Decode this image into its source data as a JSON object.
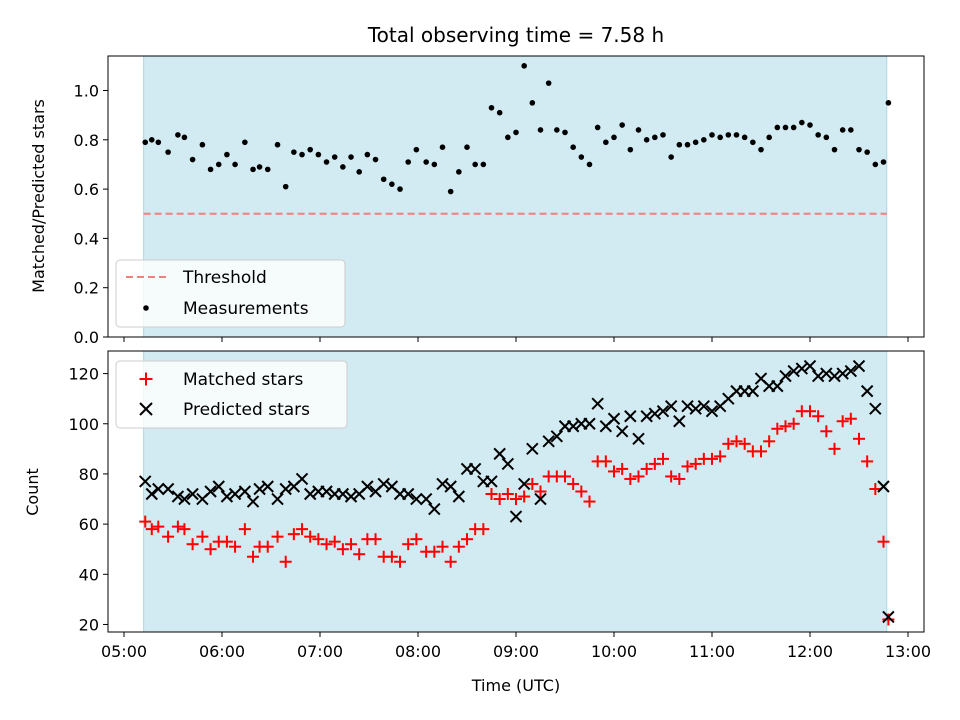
{
  "chart_data": [
    {
      "type": "scatter",
      "title": "Total observing time = 7.58 h",
      "ylabel": "Matched/Predicted stars",
      "xlabel": "",
      "ylim": [
        0,
        1.14
      ],
      "xlim": [
        "05:00",
        "13:00"
      ],
      "y_ticks": [
        0.0,
        0.2,
        0.4,
        0.6,
        0.8,
        1.0
      ],
      "y_tick_labels": [
        "0.0",
        "0.2",
        "0.4",
        "0.6",
        "0.8",
        "1.0"
      ],
      "shaded_span": {
        "start": "05:12",
        "end": "12:47",
        "color": "#add8e6"
      },
      "legend": {
        "position": "lower-left",
        "entries": [
          "Threshold",
          "Measurements"
        ]
      },
      "series": [
        {
          "name": "Threshold",
          "kind": "dashed-line",
          "color": "#f08080",
          "y": 0.5,
          "x_range": [
            "05:12",
            "12:47"
          ]
        },
        {
          "name": "Measurements",
          "kind": "points",
          "color": "#000000",
          "x": [
            "05:13",
            "05:17",
            "05:21",
            "05:27",
            "05:33",
            "05:37",
            "05:42",
            "05:48",
            "05:53",
            "05:58",
            "06:03",
            "06:08",
            "06:14",
            "06:19",
            "06:23",
            "06:28",
            "06:34",
            "06:39",
            "06:44",
            "06:49",
            "06:54",
            "06:59",
            "07:04",
            "07:09",
            "07:14",
            "07:19",
            "07:24",
            "07:29",
            "07:34",
            "07:39",
            "07:44",
            "07:49",
            "07:54",
            "07:59",
            "08:05",
            "08:10",
            "08:15",
            "08:20",
            "08:25",
            "08:30",
            "08:35",
            "08:40",
            "08:45",
            "08:50",
            "08:55",
            "09:00",
            "09:05",
            "09:10",
            "09:15",
            "09:20",
            "09:25",
            "09:30",
            "09:35",
            "09:40",
            "09:45",
            "09:50",
            "09:55",
            "10:00",
            "10:05",
            "10:10",
            "10:15",
            "10:20",
            "10:25",
            "10:30",
            "10:35",
            "10:40",
            "10:45",
            "10:50",
            "10:55",
            "11:00",
            "11:05",
            "11:10",
            "11:15",
            "11:20",
            "11:25",
            "11:30",
            "11:35",
            "11:40",
            "11:45",
            "11:50",
            "11:55",
            "12:00",
            "12:05",
            "12:10",
            "12:15",
            "12:20",
            "12:25",
            "12:30",
            "12:35",
            "12:40",
            "12:45",
            "12:48"
          ],
          "y": [
            0.79,
            0.8,
            0.79,
            0.75,
            0.82,
            0.81,
            0.72,
            0.78,
            0.68,
            0.7,
            0.74,
            0.7,
            0.79,
            0.68,
            0.69,
            0.68,
            0.78,
            0.61,
            0.75,
            0.74,
            0.76,
            0.74,
            0.71,
            0.73,
            0.69,
            0.73,
            0.67,
            0.74,
            0.72,
            0.64,
            0.62,
            0.6,
            0.71,
            0.76,
            0.71,
            0.7,
            0.77,
            0.59,
            0.67,
            0.77,
            0.7,
            0.7,
            0.93,
            0.91,
            0.81,
            0.83,
            1.1,
            0.95,
            0.84,
            1.03,
            0.84,
            0.83,
            0.77,
            0.73,
            0.7,
            0.85,
            0.79,
            0.81,
            0.86,
            0.76,
            0.84,
            0.8,
            0.81,
            0.82,
            0.73,
            0.78,
            0.78,
            0.79,
            0.8,
            0.82,
            0.81,
            0.82,
            0.82,
            0.81,
            0.79,
            0.76,
            0.81,
            0.85,
            0.85,
            0.85,
            0.87,
            0.86,
            0.82,
            0.81,
            0.76,
            0.84,
            0.84,
            0.76,
            0.75,
            0.7,
            0.71,
            0.95
          ]
        }
      ]
    },
    {
      "type": "scatter",
      "title": "",
      "ylabel": "Count",
      "xlabel": "Time (UTC)",
      "ylim": [
        17,
        129
      ],
      "xlim": [
        "05:00",
        "13:00"
      ],
      "y_ticks": [
        20,
        40,
        60,
        80,
        100,
        120
      ],
      "y_tick_labels": [
        "20",
        "40",
        "60",
        "80",
        "100",
        "120"
      ],
      "x_ticks": [
        "05:00",
        "06:00",
        "07:00",
        "08:00",
        "09:00",
        "10:00",
        "11:00",
        "12:00",
        "13:00"
      ],
      "x_tick_labels": [
        "05:00",
        "06:00",
        "07:00",
        "08:00",
        "09:00",
        "10:00",
        "11:00",
        "12:00",
        "13:00"
      ],
      "shaded_span": {
        "start": "05:12",
        "end": "12:47",
        "color": "#add8e6"
      },
      "legend": {
        "position": "top-left",
        "entries": [
          "Matched stars",
          "Predicted stars"
        ]
      },
      "series": [
        {
          "name": "Matched stars",
          "marker": "plus",
          "color": "#ff0000",
          "x": [
            "05:13",
            "05:17",
            "05:21",
            "05:27",
            "05:33",
            "05:37",
            "05:42",
            "05:48",
            "05:53",
            "05:58",
            "06:03",
            "06:08",
            "06:14",
            "06:19",
            "06:23",
            "06:28",
            "06:34",
            "06:39",
            "06:44",
            "06:49",
            "06:54",
            "06:59",
            "07:04",
            "07:09",
            "07:14",
            "07:19",
            "07:24",
            "07:29",
            "07:34",
            "07:39",
            "07:44",
            "07:49",
            "07:54",
            "07:59",
            "08:05",
            "08:10",
            "08:15",
            "08:20",
            "08:25",
            "08:30",
            "08:35",
            "08:40",
            "08:45",
            "08:50",
            "08:55",
            "09:00",
            "09:05",
            "09:10",
            "09:15",
            "09:20",
            "09:25",
            "09:30",
            "09:35",
            "09:40",
            "09:45",
            "09:50",
            "09:55",
            "10:00",
            "10:05",
            "10:10",
            "10:15",
            "10:20",
            "10:25",
            "10:30",
            "10:35",
            "10:40",
            "10:45",
            "10:50",
            "10:55",
            "11:00",
            "11:05",
            "11:10",
            "11:15",
            "11:20",
            "11:25",
            "11:30",
            "11:35",
            "11:40",
            "11:45",
            "11:50",
            "11:55",
            "12:00",
            "12:05",
            "12:10",
            "12:15",
            "12:20",
            "12:25",
            "12:30",
            "12:35",
            "12:40",
            "12:45",
            "12:48"
          ],
          "y": [
            61,
            58,
            59,
            55,
            59,
            58,
            52,
            55,
            50,
            53,
            53,
            51,
            58,
            47,
            51,
            51,
            55,
            45,
            56,
            58,
            55,
            54,
            52,
            53,
            50,
            52,
            48,
            54,
            54,
            47,
            47,
            45,
            52,
            54,
            49,
            49,
            51,
            45,
            51,
            54,
            58,
            58,
            72,
            70,
            72,
            70,
            71,
            76,
            73,
            79,
            79,
            79,
            76,
            73,
            69,
            85,
            85,
            81,
            82,
            78,
            79,
            82,
            84,
            86,
            79,
            78,
            83,
            84,
            86,
            86,
            87,
            92,
            93,
            92,
            89,
            89,
            93,
            98,
            99,
            100,
            105,
            105,
            103,
            97,
            90,
            101,
            102,
            94,
            85,
            74,
            53,
            22
          ]
        },
        {
          "name": "Predicted stars",
          "marker": "x",
          "color": "#000000",
          "x": [
            "05:13",
            "05:17",
            "05:21",
            "05:27",
            "05:33",
            "05:37",
            "05:42",
            "05:48",
            "05:53",
            "05:58",
            "06:03",
            "06:08",
            "06:14",
            "06:19",
            "06:23",
            "06:28",
            "06:34",
            "06:39",
            "06:44",
            "06:49",
            "06:54",
            "06:59",
            "07:04",
            "07:09",
            "07:14",
            "07:19",
            "07:24",
            "07:29",
            "07:34",
            "07:39",
            "07:44",
            "07:49",
            "07:54",
            "07:59",
            "08:05",
            "08:10",
            "08:15",
            "08:20",
            "08:25",
            "08:30",
            "08:35",
            "08:40",
            "08:45",
            "08:50",
            "08:55",
            "09:00",
            "09:05",
            "09:10",
            "09:15",
            "09:20",
            "09:25",
            "09:30",
            "09:35",
            "09:40",
            "09:45",
            "09:50",
            "09:55",
            "10:00",
            "10:05",
            "10:10",
            "10:15",
            "10:20",
            "10:25",
            "10:30",
            "10:35",
            "10:40",
            "10:45",
            "10:50",
            "10:55",
            "11:00",
            "11:05",
            "11:10",
            "11:15",
            "11:20",
            "11:25",
            "11:30",
            "11:35",
            "11:40",
            "11:45",
            "11:50",
            "11:55",
            "12:00",
            "12:05",
            "12:10",
            "12:15",
            "12:20",
            "12:25",
            "12:30",
            "12:35",
            "12:40",
            "12:45",
            "12:48"
          ],
          "y": [
            77,
            72,
            74,
            74,
            71,
            70,
            72,
            70,
            73,
            75,
            71,
            72,
            73,
            69,
            74,
            75,
            70,
            74,
            75,
            78,
            72,
            73,
            73,
            72,
            72,
            71,
            72,
            75,
            73,
            76,
            75,
            72,
            72,
            70,
            70,
            66,
            76,
            75,
            71,
            82,
            82,
            77,
            77,
            88,
            84,
            63,
            76,
            90,
            70,
            93,
            95,
            99,
            99,
            100,
            100,
            108,
            99,
            102,
            97,
            103,
            94,
            103,
            104,
            105,
            107,
            101,
            107,
            106,
            107,
            105,
            107,
            110,
            113,
            113,
            113,
            118,
            115,
            115,
            119,
            121,
            122,
            123,
            119,
            120,
            119,
            120,
            121,
            123,
            113,
            106,
            75,
            23
          ]
        }
      ]
    }
  ]
}
